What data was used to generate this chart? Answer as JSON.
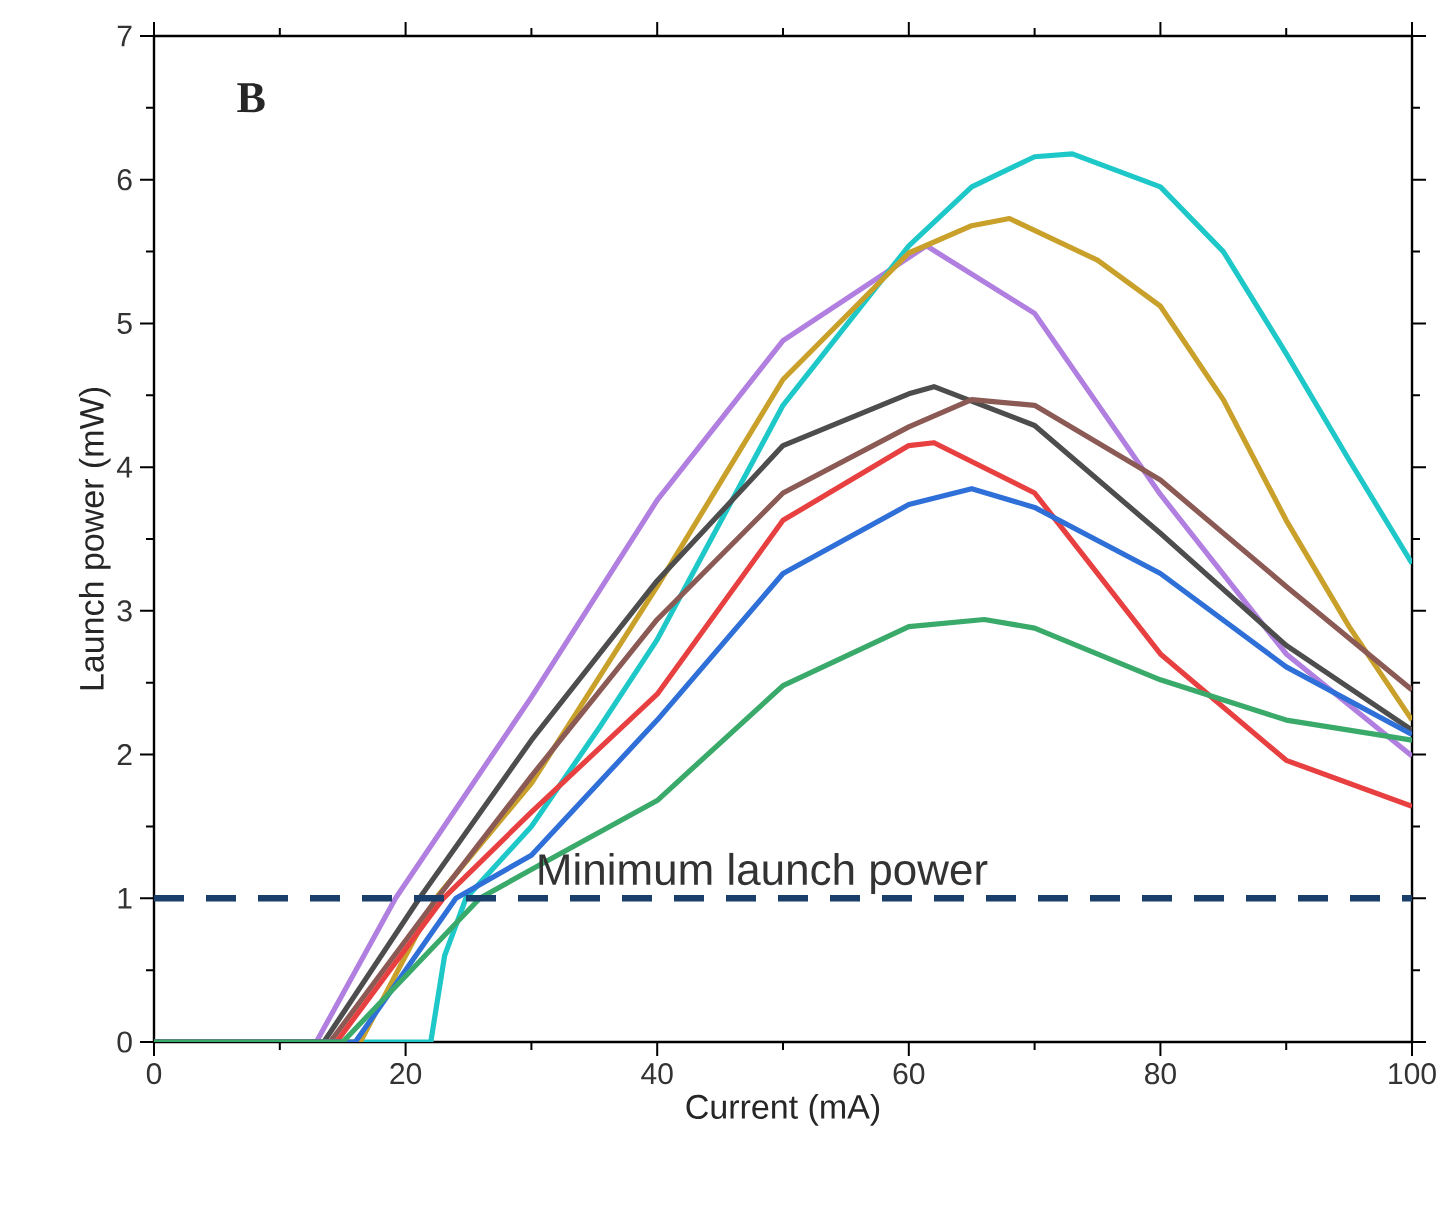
{
  "chart_data": {
    "type": "line",
    "xlabel": "Current (mA)",
    "ylabel": "Launch power (mW)",
    "annotations": [
      "B"
    ],
    "xlim": [
      0,
      100
    ],
    "xticks": [
      0,
      20,
      40,
      60,
      80,
      100
    ],
    "ylim": [
      0,
      7
    ],
    "yticks": [
      0,
      1,
      2,
      3,
      4,
      5,
      6,
      7
    ],
    "grid": false,
    "marker": "none",
    "line_style": "solid",
    "ref_lines": [
      {
        "axis": "y",
        "value": 1,
        "label": "Minimum launch power",
        "color": "#1a3f6b",
        "line_style": "dashed"
      }
    ],
    "series": [
      {
        "color": "#b07fe0",
        "x": [
          0,
          12.9,
          19.2,
          30,
          40,
          50,
          61.4,
          70,
          80,
          90,
          100
        ],
        "values": [
          0,
          0,
          1.0,
          2.4,
          3.77,
          4.88,
          5.54,
          5.07,
          3.81,
          2.7,
          1.99
        ]
      },
      {
        "color": "#1fc8c8",
        "x": [
          0,
          22,
          23.1,
          24.8,
          30,
          35.5,
          40,
          50,
          60,
          65,
          70,
          73,
          80,
          85,
          90,
          95,
          100
        ],
        "values": [
          0,
          0,
          0.6,
          1.0,
          1.5,
          2.2,
          2.8,
          4.43,
          5.54,
          5.95,
          6.16,
          6.18,
          5.95,
          5.5,
          4.79,
          4.05,
          3.33
        ]
      },
      {
        "color": "#c8a02a",
        "x": [
          0,
          16.4,
          22.4,
          30,
          40,
          50,
          60,
          65,
          68,
          75,
          80,
          85,
          90,
          95,
          100
        ],
        "values": [
          0,
          0,
          1.0,
          1.8,
          3.17,
          4.61,
          5.49,
          5.68,
          5.73,
          5.44,
          5.12,
          4.47,
          3.63,
          2.89,
          2.24
        ]
      },
      {
        "color": "#4d4d4d",
        "x": [
          0,
          13.5,
          21.1,
          30,
          40,
          50,
          60,
          62,
          70,
          80,
          90,
          100
        ],
        "values": [
          0,
          0,
          1.0,
          2.1,
          3.21,
          4.15,
          4.51,
          4.56,
          4.29,
          3.54,
          2.76,
          2.17
        ]
      },
      {
        "color": "#8b5a55",
        "x": [
          0,
          14,
          22.5,
          30,
          40,
          50,
          60,
          65,
          70,
          80,
          90,
          100
        ],
        "values": [
          0,
          0,
          1.0,
          1.85,
          2.94,
          3.82,
          4.28,
          4.47,
          4.43,
          3.91,
          3.17,
          2.45
        ]
      },
      {
        "color": "#e84040",
        "x": [
          0,
          14.5,
          23,
          30,
          40,
          50,
          60,
          62,
          70,
          80,
          90,
          100
        ],
        "values": [
          0,
          0,
          1.0,
          1.6,
          2.42,
          3.63,
          4.15,
          4.17,
          3.82,
          2.7,
          1.96,
          1.64
        ]
      },
      {
        "color": "#2f6fd8",
        "x": [
          0,
          16,
          24,
          30,
          40,
          50,
          60,
          65,
          70,
          80,
          90,
          100
        ],
        "values": [
          0,
          0,
          1.0,
          1.3,
          2.24,
          3.26,
          3.74,
          3.85,
          3.72,
          3.26,
          2.61,
          2.14
        ]
      },
      {
        "color": "#3aaa6a",
        "x": [
          0,
          15,
          25.9,
          30,
          40,
          50,
          60,
          66,
          70,
          80,
          90,
          100
        ],
        "values": [
          0,
          0,
          1.0,
          1.2,
          1.68,
          2.48,
          2.89,
          2.94,
          2.88,
          2.52,
          2.24,
          2.1
        ]
      }
    ]
  }
}
